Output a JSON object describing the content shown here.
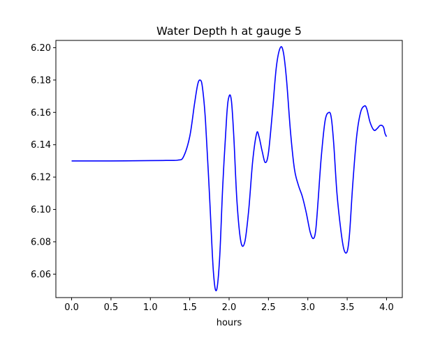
{
  "chart_data": {
    "type": "line",
    "title": "Water Depth h at gauge 5",
    "xlabel": "hours",
    "ylabel": "",
    "xlim": [
      -0.2,
      4.2
    ],
    "ylim": [
      6.0455,
      6.2045
    ],
    "xticks": [
      0.0,
      0.5,
      1.0,
      1.5,
      2.0,
      2.5,
      3.0,
      3.5,
      4.0
    ],
    "xtick_labels": [
      "0.0",
      "0.5",
      "1.0",
      "1.5",
      "2.0",
      "2.5",
      "3.0",
      "3.5",
      "4.0"
    ],
    "yticks": [
      6.06,
      6.08,
      6.1,
      6.12,
      6.14,
      6.16,
      6.18,
      6.2
    ],
    "ytick_labels": [
      "6.06",
      "6.08",
      "6.10",
      "6.12",
      "6.14",
      "6.16",
      "6.18",
      "6.20"
    ],
    "grid": false,
    "series": [
      {
        "color": "#0000ff",
        "x": [
          0.0,
          0.5,
          1.0,
          1.2,
          1.35,
          1.42,
          1.5,
          1.56,
          1.6,
          1.63,
          1.66,
          1.7,
          1.75,
          1.8,
          1.84,
          1.88,
          1.92,
          1.97,
          2.0,
          2.03,
          2.06,
          2.1,
          2.15,
          2.2,
          2.25,
          2.3,
          2.35,
          2.38,
          2.42,
          2.46,
          2.5,
          2.55,
          2.6,
          2.65,
          2.69,
          2.73,
          2.78,
          2.83,
          2.88,
          2.93,
          2.98,
          3.03,
          3.07,
          3.1,
          3.13,
          3.17,
          3.22,
          3.27,
          3.3,
          3.33,
          3.37,
          3.42,
          3.46,
          3.5,
          3.53,
          3.57,
          3.62,
          3.67,
          3.72,
          3.75,
          3.79,
          3.84,
          3.88,
          3.92,
          3.96,
          3.98,
          4.0
        ],
        "y": [
          6.13,
          6.13,
          6.1302,
          6.1303,
          6.1305,
          6.1325,
          6.145,
          6.165,
          6.177,
          6.18,
          6.176,
          6.155,
          6.11,
          6.062,
          6.05,
          6.07,
          6.115,
          6.158,
          6.17,
          6.167,
          6.145,
          6.105,
          6.08,
          6.08,
          6.1,
          6.13,
          6.147,
          6.145,
          6.136,
          6.129,
          6.135,
          6.16,
          6.188,
          6.2,
          6.197,
          6.18,
          6.148,
          6.125,
          6.115,
          6.108,
          6.098,
          6.086,
          6.082,
          6.087,
          6.105,
          6.132,
          6.155,
          6.16,
          6.156,
          6.14,
          6.11,
          6.087,
          6.075,
          6.074,
          6.085,
          6.115,
          6.145,
          6.16,
          6.164,
          6.162,
          6.154,
          6.149,
          6.15,
          6.152,
          6.151,
          6.147,
          6.145
        ]
      }
    ]
  }
}
